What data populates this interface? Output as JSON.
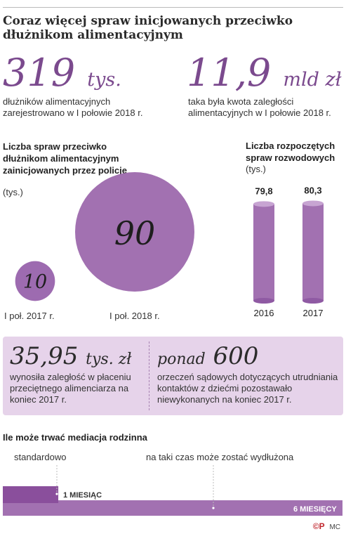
{
  "title": "Coraz więcej spraw inicjowanych przeciwko dłużnikom alimentacyjnym",
  "stats": [
    {
      "number": "319",
      "unit": "tys.",
      "description": "dłużników alimentacyjnych zarejestrowano w I połowie 2018 r."
    },
    {
      "number": "11,9",
      "unit": "mld zł",
      "description": "taka była kwota zaległości alimentacyjnych w I połowie 2018 r."
    }
  ],
  "colors": {
    "accent": "#7b4a8e",
    "bubble": "#a271b1",
    "bubble_light": "#9d6bb0",
    "box_bg": "#e6d3ea",
    "bar_fill": "#a271b1"
  },
  "chart_data": [
    {
      "type": "bubble",
      "title": "Liczba spraw przeciwko dłużnikom alimentacyjnym zainicjowanych przez policję",
      "unit": "(tys.)",
      "categories": [
        "I poł. 2017 r.",
        "I poł. 2018 r."
      ],
      "values": [
        10,
        90
      ],
      "value_labels": [
        "10",
        "90"
      ]
    },
    {
      "type": "bar",
      "title": "Liczba rozpoczętych spraw rozwodowych",
      "unit": "(tys.)",
      "categories": [
        "2016",
        "2017"
      ],
      "values": [
        79.8,
        80.3
      ],
      "value_labels": [
        "79,8",
        "80,3"
      ]
    },
    {
      "type": "bar",
      "orientation": "horizontal",
      "title": "Ile może trwać mediacja rodzinna",
      "categories": [
        "standardowo",
        "na taki czas może zostać wydłużona"
      ],
      "values": [
        1,
        6
      ],
      "value_labels": [
        "1 MIESIĄC",
        "6 MIESIĘCY"
      ]
    }
  ],
  "info_box": {
    "left": {
      "number": "35,95",
      "unit": "tys. zł",
      "description": "wynosiła zaległość w płaceniu przeciętnego alimenciarza na koniec 2017 r."
    },
    "right": {
      "prefix": "ponad",
      "number": "600",
      "description": "orzeczeń sądowych dotyczących utrudniania kontaktów z dziećmi pozostawało niewykonanych na koniec 2017 r."
    }
  },
  "footer": {
    "logo": "©P",
    "credit": "MC"
  }
}
